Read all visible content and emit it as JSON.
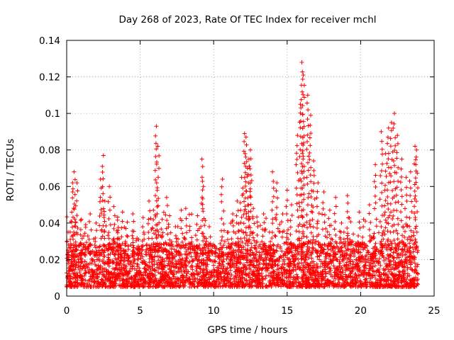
{
  "chart_data": {
    "type": "scatter",
    "title": "Day 268 of 2023, Rate Of TEC Index for receiver mchl",
    "xlabel": "GPS time / hours",
    "ylabel": "ROTI / TECUs",
    "xlim": [
      0,
      25
    ],
    "ylim": [
      0,
      0.14
    ],
    "x_ticks": [
      0,
      5,
      10,
      15,
      20,
      25
    ],
    "x_tick_labels": [
      "0",
      "5",
      "10",
      "15",
      "20",
      "25"
    ],
    "y_ticks": [
      0,
      0.02,
      0.04,
      0.06,
      0.08,
      0.1,
      0.12,
      0.14
    ],
    "y_tick_labels": [
      "0",
      "0.02",
      "0.04",
      "0.06",
      "0.08",
      "0.1",
      "0.12",
      "0.14"
    ],
    "grid": true,
    "marker": "+",
    "color": "#ff0000",
    "series": [
      {
        "name": "ROTI",
        "points_note": "representative sample of the dense point cloud; x = hours, y = TECU/min",
        "x": [
          0.1,
          0.3,
          0.4,
          0.5,
          0.7,
          1.0,
          1.2,
          1.6,
          2.0,
          2.3,
          2.5,
          2.6,
          2.9,
          3.2,
          3.5,
          3.8,
          4.1,
          4.5,
          4.9,
          5.2,
          5.6,
          5.9,
          6.1,
          6.2,
          6.5,
          6.8,
          7.0,
          7.4,
          7.8,
          8.1,
          8.5,
          8.9,
          9.2,
          9.3,
          9.7,
          10.1,
          10.6,
          11.0,
          11.3,
          11.6,
          11.9,
          12.1,
          12.2,
          12.3,
          12.4,
          12.5,
          12.7,
          13.0,
          13.4,
          13.8,
          14.0,
          14.3,
          14.7,
          15.0,
          15.3,
          15.7,
          15.9,
          16.0,
          16.1,
          16.4,
          16.6,
          16.8,
          17.1,
          17.5,
          17.9,
          18.3,
          18.7,
          19.1,
          19.5,
          19.9,
          20.2,
          20.6,
          21.0,
          21.4,
          21.7,
          21.9,
          22.1,
          22.3,
          22.5,
          22.8,
          23.1,
          23.4,
          23.7,
          23.8
        ],
        "y": [
          0.035,
          0.041,
          0.062,
          0.068,
          0.062,
          0.042,
          0.028,
          0.045,
          0.04,
          0.064,
          0.077,
          0.052,
          0.06,
          0.049,
          0.036,
          0.046,
          0.033,
          0.045,
          0.031,
          0.043,
          0.052,
          0.047,
          0.093,
          0.082,
          0.042,
          0.054,
          0.044,
          0.038,
          0.047,
          0.048,
          0.032,
          0.044,
          0.075,
          0.06,
          0.038,
          0.027,
          0.064,
          0.035,
          0.045,
          0.052,
          0.065,
          0.089,
          0.087,
          0.07,
          0.075,
          0.08,
          0.048,
          0.038,
          0.045,
          0.035,
          0.068,
          0.062,
          0.045,
          0.058,
          0.05,
          0.088,
          0.105,
          0.128,
          0.121,
          0.11,
          0.099,
          0.074,
          0.062,
          0.057,
          0.047,
          0.054,
          0.04,
          0.055,
          0.034,
          0.046,
          0.042,
          0.05,
          0.072,
          0.09,
          0.078,
          0.092,
          0.095,
          0.1,
          0.088,
          0.075,
          0.065,
          0.068,
          0.082,
          0.08
        ]
      }
    ],
    "baseline_band": {
      "min": 0.005,
      "typical_max": 0.025,
      "note": "dense cloud of points across all hours between about 0.005 and 0.025"
    }
  }
}
